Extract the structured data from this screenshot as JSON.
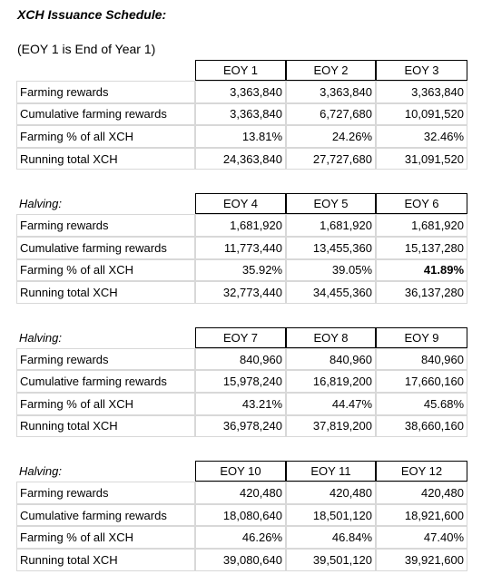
{
  "title": "XCH Issuance Schedule:",
  "subtitle": "(EOY 1 is End of Year 1)",
  "blocks": [
    {
      "label": null,
      "columns": [
        "EOY 1",
        "EOY 2",
        "EOY 3"
      ],
      "rows": [
        {
          "label": "Farming rewards",
          "cells": [
            "3,363,840",
            "3,363,840",
            "3,363,840"
          ]
        },
        {
          "label": "Cumulative farming rewards",
          "cells": [
            "3,363,840",
            "6,727,680",
            "10,091,520"
          ]
        },
        {
          "label": "Farming % of all XCH",
          "cells": [
            "13.81%",
            "24.26%",
            "32.46%"
          ]
        },
        {
          "label": "Running total XCH",
          "cells": [
            "24,363,840",
            "27,727,680",
            "31,091,520"
          ]
        }
      ]
    },
    {
      "label": "Halving:",
      "columns": [
        "EOY 4",
        "EOY 5",
        "EOY 6"
      ],
      "rows": [
        {
          "label": "Farming rewards",
          "cells": [
            "1,681,920",
            "1,681,920",
            "1,681,920"
          ]
        },
        {
          "label": "Cumulative farming rewards",
          "cells": [
            "11,773,440",
            "13,455,360",
            "15,137,280"
          ]
        },
        {
          "label": "Farming % of all XCH",
          "cells": [
            "35.92%",
            "39.05%",
            "41.89%"
          ]
        },
        {
          "label": "Running total XCH",
          "cells": [
            "32,773,440",
            "34,455,360",
            "36,137,280"
          ]
        }
      ],
      "bold_cells": [
        [
          2,
          2
        ]
      ]
    },
    {
      "label": "Halving:",
      "columns": [
        "EOY 7",
        "EOY 8",
        "EOY 9"
      ],
      "rows": [
        {
          "label": "Farming rewards",
          "cells": [
            "840,960",
            "840,960",
            "840,960"
          ]
        },
        {
          "label": "Cumulative farming rewards",
          "cells": [
            "15,978,240",
            "16,819,200",
            "17,660,160"
          ]
        },
        {
          "label": "Farming % of all XCH",
          "cells": [
            "43.21%",
            "44.47%",
            "45.68%"
          ]
        },
        {
          "label": "Running total XCH",
          "cells": [
            "36,978,240",
            "37,819,200",
            "38,660,160"
          ]
        }
      ]
    },
    {
      "label": "Halving:",
      "columns": [
        "EOY 10",
        "EOY 11",
        "EOY 12"
      ],
      "rows": [
        {
          "label": "Farming rewards",
          "cells": [
            "420,480",
            "420,480",
            "420,480"
          ]
        },
        {
          "label": "Cumulative farming rewards",
          "cells": [
            "18,080,640",
            "18,501,120",
            "18,921,600"
          ]
        },
        {
          "label": "Farming % of all XCH",
          "cells": [
            "46.26%",
            "46.84%",
            "47.40%"
          ]
        },
        {
          "label": "Running total XCH",
          "cells": [
            "39,080,640",
            "39,501,120",
            "39,921,600"
          ]
        }
      ]
    }
  ]
}
